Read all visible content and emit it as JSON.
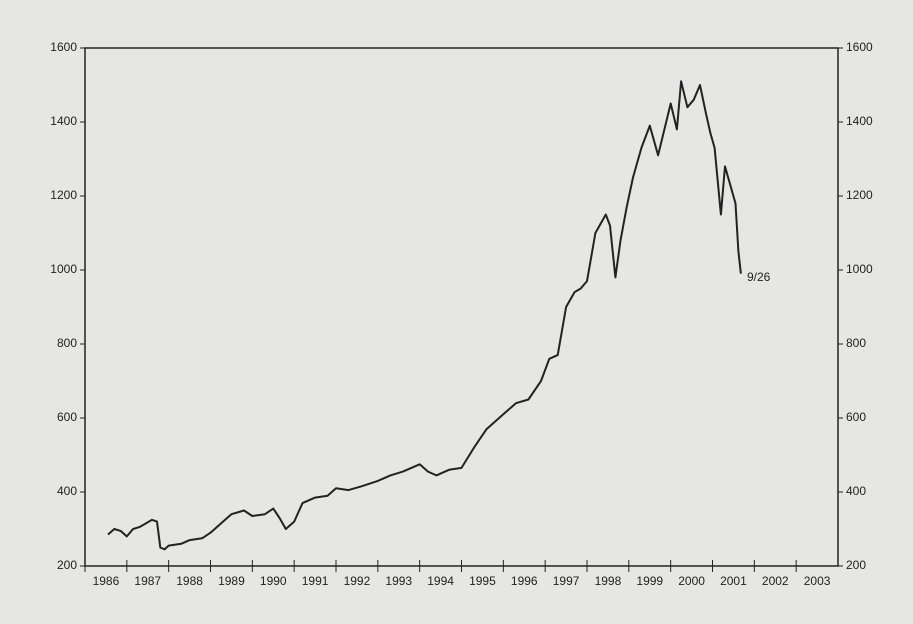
{
  "chart_data": {
    "type": "line",
    "x": [
      1986.55,
      1986.7,
      1986.85,
      1987.0,
      1987.15,
      1987.3,
      1987.45,
      1987.6,
      1987.72,
      1987.8,
      1987.9,
      1988.0,
      1988.3,
      1988.5,
      1988.8,
      1989.0,
      1989.3,
      1989.5,
      1989.8,
      1990.0,
      1990.3,
      1990.5,
      1990.65,
      1990.8,
      1991.0,
      1991.2,
      1991.5,
      1991.8,
      1992.0,
      1992.3,
      1992.6,
      1993.0,
      1993.3,
      1993.6,
      1994.0,
      1994.2,
      1994.4,
      1994.7,
      1995.0,
      1995.3,
      1995.6,
      1996.0,
      1996.3,
      1996.6,
      1996.9,
      1997.1,
      1997.3,
      1997.5,
      1997.7,
      1997.85,
      1998.0,
      1998.2,
      1998.45,
      1998.55,
      1998.68,
      1998.8,
      1998.95,
      1999.1,
      1999.3,
      1999.5,
      1999.7,
      1999.85,
      2000.0,
      2000.15,
      2000.25,
      2000.4,
      2000.55,
      2000.7,
      2000.85,
      2000.95,
      2001.05,
      2001.2,
      2001.3,
      2001.4,
      2001.55,
      2001.62,
      2001.68
    ],
    "values": [
      285,
      300,
      295,
      280,
      300,
      305,
      315,
      325,
      320,
      250,
      245,
      255,
      260,
      270,
      275,
      290,
      320,
      340,
      350,
      335,
      340,
      355,
      330,
      300,
      320,
      370,
      385,
      390,
      410,
      405,
      415,
      430,
      445,
      455,
      475,
      455,
      445,
      460,
      465,
      520,
      570,
      610,
      640,
      650,
      700,
      760,
      770,
      900,
      940,
      950,
      970,
      1100,
      1150,
      1120,
      980,
      1080,
      1170,
      1250,
      1330,
      1390,
      1310,
      1380,
      1450,
      1380,
      1510,
      1440,
      1460,
      1500,
      1420,
      1370,
      1330,
      1150,
      1280,
      1240,
      1180,
      1050,
      990
    ],
    "color": "#222222",
    "xlim": [
      1986,
      2004
    ],
    "xticks": [
      1986,
      1987,
      1988,
      1989,
      1990,
      1991,
      1992,
      1993,
      1994,
      1995,
      1996,
      1997,
      1998,
      1999,
      2000,
      2001,
      2002,
      2003
    ],
    "ylim": [
      200,
      1600
    ],
    "yticks": [
      200,
      400,
      600,
      800,
      1000,
      1200,
      1400,
      1600
    ],
    "annotation": "9/26"
  }
}
